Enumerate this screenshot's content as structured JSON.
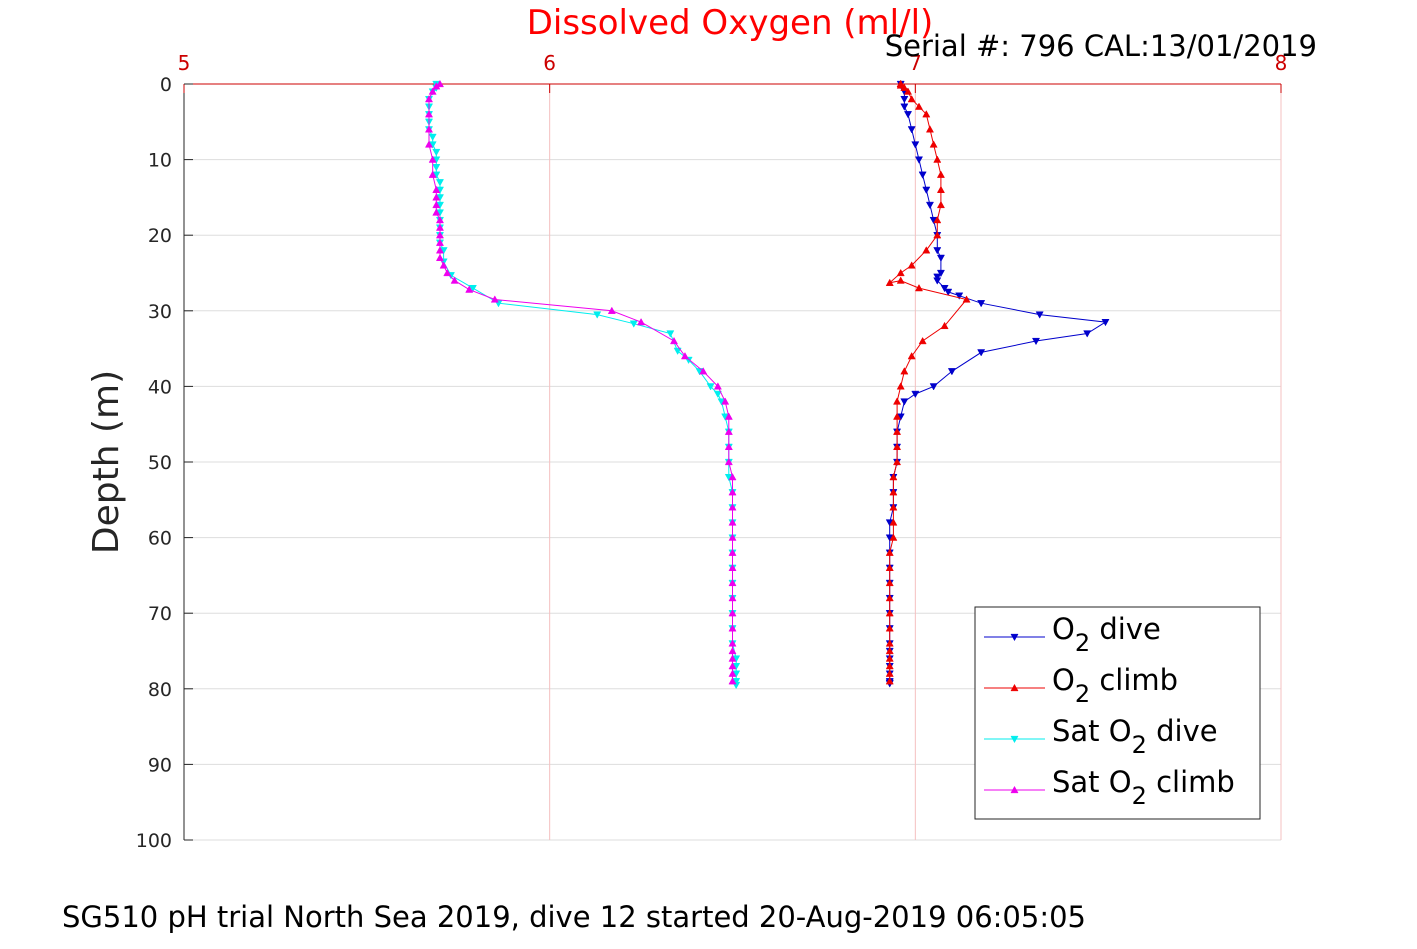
{
  "chart_data": {
    "type": "line",
    "title": "Dissolved Oxygen (ml/l)",
    "subtitle": "Serial #: 796  CAL:13/01/2019",
    "caption": "SG510 pH trial North Sea 2019, dive 12 started 20-Aug-2019 06:05:05",
    "xlabel": "",
    "ylabel": "Depth (m)",
    "xlim": [
      5,
      8
    ],
    "ylim": [
      0,
      100
    ],
    "y_reversed": true,
    "x_axis_position": "top",
    "xticks": [
      "5",
      "6",
      "7",
      "8"
    ],
    "yticks": [
      "0",
      "10",
      "20",
      "30",
      "40",
      "50",
      "60",
      "70",
      "80",
      "90",
      "100"
    ],
    "grid": true,
    "legend_position": "bottom-right",
    "colors": {
      "title": "#ff0000",
      "xaxis": "#cc0000",
      "grid": "#dddddd",
      "vgrid": "#f5c0c0"
    },
    "series": [
      {
        "name": "O2 dive",
        "legend_main": "O",
        "legend_sub": "2",
        "legend_suffix": " dive",
        "color": "#0000cc",
        "marker": "down",
        "x": [
          6.96,
          6.97,
          6.97,
          6.97,
          6.98,
          6.99,
          7.0,
          7.01,
          7.02,
          7.03,
          7.04,
          7.05,
          7.06,
          7.06,
          7.07,
          7.07,
          7.06,
          7.06,
          7.08,
          7.09,
          7.12,
          7.18,
          7.34,
          7.52,
          7.47,
          7.33,
          7.18,
          7.1,
          7.05,
          7.0,
          6.97,
          6.96,
          6.95,
          6.95,
          6.95,
          6.94,
          6.94,
          6.94,
          6.93,
          6.93,
          6.93,
          6.93,
          6.93,
          6.93,
          6.93,
          6.93,
          6.93,
          6.93,
          6.93,
          6.93,
          6.93,
          6.93,
          6.93,
          6.93
        ],
        "y": [
          0,
          1,
          2,
          3,
          4,
          6,
          8,
          10,
          12,
          14,
          16,
          18,
          20,
          22,
          23,
          25,
          25.5,
          26,
          27,
          27.5,
          28,
          29,
          30.5,
          31.5,
          33,
          34,
          35.5,
          38,
          40,
          41,
          42,
          44,
          46,
          48,
          50,
          52,
          54,
          56,
          58,
          60,
          62,
          64,
          66,
          68,
          70,
          72,
          74,
          75,
          76,
          77,
          78,
          79,
          79.2,
          79.3
        ]
      },
      {
        "name": "O2 climb",
        "legend_main": "O",
        "legend_sub": "2",
        "legend_suffix": " climb",
        "color": "#ee0000",
        "marker": "up",
        "x": [
          6.93,
          6.93,
          6.93,
          6.93,
          6.93,
          6.93,
          6.93,
          6.93,
          6.93,
          6.93,
          6.93,
          6.93,
          6.94,
          6.94,
          6.94,
          6.94,
          6.94,
          6.95,
          6.95,
          6.95,
          6.95,
          6.95,
          6.96,
          6.97,
          6.99,
          7.02,
          7.08,
          7.14,
          7.01,
          6.96,
          6.93,
          6.96,
          6.99,
          7.03,
          7.06,
          7.06,
          7.07,
          7.07,
          7.07,
          7.06,
          7.05,
          7.04,
          7.03,
          7.01,
          6.99,
          6.98,
          6.97,
          6.96,
          6.96,
          6.96,
          6.96
        ],
        "y": [
          79,
          78,
          77,
          76,
          75,
          74,
          72,
          70,
          68,
          66,
          64,
          62,
          60,
          58,
          56,
          54,
          52,
          50,
          48,
          46,
          44,
          42,
          40,
          38,
          36,
          34,
          32,
          28.5,
          27,
          26,
          26.3,
          25,
          24,
          22,
          20,
          18,
          16,
          14,
          12,
          10,
          8,
          6,
          4,
          3,
          2,
          1,
          0.5,
          0.2,
          0,
          0,
          0
        ]
      },
      {
        "name": "Sat O2 dive",
        "legend_main": "Sat O",
        "legend_sub": "2",
        "legend_suffix": " dive",
        "color": "#00eeee",
        "marker": "down",
        "x": [
          5.69,
          5.69,
          5.68,
          5.67,
          5.67,
          5.67,
          5.67,
          5.67,
          5.68,
          5.68,
          5.69,
          5.69,
          5.69,
          5.69,
          5.7,
          5.7,
          5.7,
          5.7,
          5.7,
          5.7,
          5.7,
          5.7,
          5.7,
          5.71,
          5.71,
          5.73,
          5.79,
          5.86,
          6.13,
          6.23,
          6.33,
          6.35,
          6.38,
          6.41,
          6.44,
          6.46,
          6.47,
          6.48,
          6.49,
          6.49,
          6.49,
          6.49,
          6.5,
          6.5,
          6.5,
          6.5,
          6.5,
          6.5,
          6.5,
          6.5,
          6.5,
          6.5,
          6.5,
          6.51,
          6.51,
          6.51,
          6.51,
          6.51
        ],
        "y": [
          0,
          0.5,
          1,
          2,
          3,
          4,
          5,
          6,
          7,
          8,
          9,
          10,
          11,
          12,
          13,
          14,
          15,
          16,
          17,
          18,
          19,
          20,
          21,
          22,
          23.5,
          25.3,
          27,
          29,
          30.5,
          31.7,
          33,
          35.3,
          36.5,
          38,
          40,
          41,
          42,
          44,
          46,
          48,
          50,
          52,
          54,
          56,
          58,
          60,
          62,
          64,
          66,
          68,
          70,
          72,
          74,
          76,
          77,
          78,
          79,
          79.5
        ]
      },
      {
        "name": "Sat O2 climb",
        "legend_main": "Sat O",
        "legend_sub": "2",
        "legend_suffix": " climb",
        "color": "#ee00ee",
        "marker": "up",
        "x": [
          6.5,
          6.5,
          6.5,
          6.5,
          6.5,
          6.5,
          6.5,
          6.5,
          6.5,
          6.5,
          6.5,
          6.5,
          6.5,
          6.5,
          6.5,
          6.5,
          6.5,
          6.49,
          6.49,
          6.49,
          6.49,
          6.48,
          6.46,
          6.42,
          6.37,
          6.34,
          6.25,
          6.17,
          5.85,
          5.78,
          5.74,
          5.72,
          5.71,
          5.7,
          5.7,
          5.7,
          5.7,
          5.7,
          5.7,
          5.69,
          5.69,
          5.69,
          5.69,
          5.68,
          5.68,
          5.67,
          5.67,
          5.67,
          5.67,
          5.68,
          5.69,
          5.7
        ],
        "y": [
          79,
          78,
          77,
          76,
          75,
          74,
          72,
          70,
          68,
          66,
          64,
          62,
          60,
          58,
          56,
          54,
          52,
          50,
          48,
          46,
          44,
          42,
          40,
          38,
          36,
          34,
          31.5,
          30,
          28.5,
          27.2,
          26,
          25,
          24,
          23,
          22,
          21,
          20,
          19,
          18,
          17,
          16,
          15,
          14,
          12,
          10,
          8,
          6,
          4,
          2,
          1,
          0.3,
          0
        ]
      }
    ]
  }
}
